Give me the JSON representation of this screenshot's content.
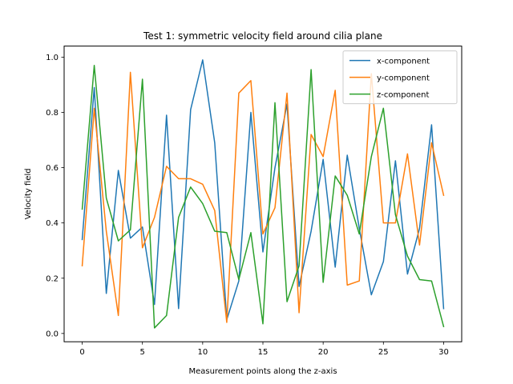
{
  "chart_data": {
    "type": "line",
    "title": "Test 1: symmetric velocity field around cilia plane",
    "xlabel": "Measurement points along the z-axis",
    "ylabel": "Velocity field",
    "xlim": [
      -1.5,
      31.5
    ],
    "ylim": [
      -0.03,
      1.04
    ],
    "xticks": [
      0,
      5,
      10,
      15,
      20,
      25,
      30
    ],
    "yticks": [
      0.0,
      0.2,
      0.4,
      0.6,
      0.8,
      1.0
    ],
    "xtick_labels": [
      "0",
      "5",
      "10",
      "15",
      "20",
      "25",
      "30"
    ],
    "ytick_labels": [
      "0.0",
      "0.2",
      "0.4",
      "0.6",
      "0.8",
      "1.0"
    ],
    "legend_position": "top-right",
    "grid": false,
    "x": [
      0,
      1,
      2,
      3,
      4,
      5,
      6,
      7,
      8,
      9,
      10,
      11,
      12,
      13,
      14,
      15,
      16,
      17,
      18,
      19,
      20,
      21,
      22,
      23,
      24,
      25,
      26,
      27,
      28,
      29,
      30
    ],
    "series": [
      {
        "name": "x-component",
        "color": "#1f77b4",
        "values": [
          0.34,
          0.89,
          0.145,
          0.59,
          0.345,
          0.385,
          0.105,
          0.79,
          0.09,
          0.81,
          0.99,
          0.69,
          0.05,
          0.19,
          0.8,
          0.295,
          0.6,
          0.83,
          0.17,
          0.37,
          0.63,
          0.24,
          0.645,
          0.38,
          0.14,
          0.26,
          0.625,
          0.215,
          0.38,
          0.755,
          0.09
        ]
      },
      {
        "name": "y-component",
        "color": "#ff7f0e",
        "values": [
          0.245,
          0.815,
          0.37,
          0.065,
          0.945,
          0.31,
          0.42,
          0.605,
          0.56,
          0.56,
          0.54,
          0.445,
          0.04,
          0.87,
          0.915,
          0.36,
          0.455,
          0.87,
          0.075,
          0.72,
          0.64,
          0.88,
          0.175,
          0.19,
          0.94,
          0.4,
          0.4,
          0.65,
          0.32,
          0.69,
          0.5
        ]
      },
      {
        "name": "z-component",
        "color": "#2ca02c",
        "values": [
          0.45,
          0.97,
          0.49,
          0.335,
          0.375,
          0.92,
          0.02,
          0.065,
          0.42,
          0.53,
          0.47,
          0.37,
          0.365,
          0.195,
          0.365,
          0.035,
          0.835,
          0.115,
          0.245,
          0.955,
          0.185,
          0.57,
          0.5,
          0.36,
          0.64,
          0.815,
          0.43,
          0.28,
          0.195,
          0.19,
          0.025
        ]
      }
    ]
  }
}
